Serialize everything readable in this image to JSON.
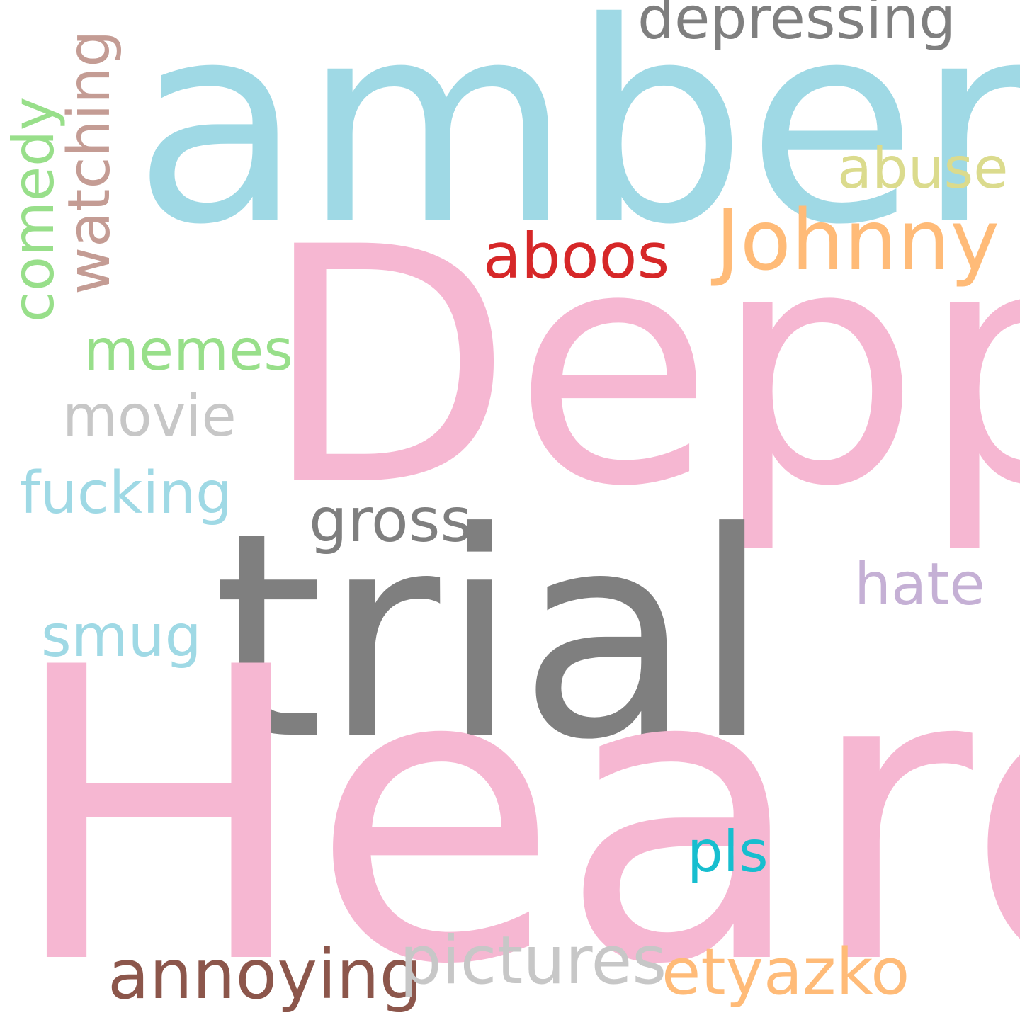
{
  "word_cloud": {
    "background": "#ffffff",
    "words": [
      {
        "text": "amber",
        "color": "#9fd9e5",
        "orientation": "horizontal"
      },
      {
        "text": "Depp",
        "color": "#f6b7d2",
        "orientation": "horizontal"
      },
      {
        "text": "trial",
        "color": "#7f7f7f",
        "orientation": "horizontal"
      },
      {
        "text": "Heard",
        "color": "#f6b7d2",
        "orientation": "horizontal"
      },
      {
        "text": "Johnny",
        "color": "#ffbb78",
        "orientation": "horizontal"
      },
      {
        "text": "depressing",
        "color": "#7f7f7f",
        "orientation": "horizontal"
      },
      {
        "text": "abuse",
        "color": "#dbdb8d",
        "orientation": "horizontal"
      },
      {
        "text": "aboos",
        "color": "#d62728",
        "orientation": "horizontal"
      },
      {
        "text": "memes",
        "color": "#98df8a",
        "orientation": "horizontal"
      },
      {
        "text": "movie",
        "color": "#c7c7c7",
        "orientation": "horizontal"
      },
      {
        "text": "fucking",
        "color": "#9fd9e5",
        "orientation": "horizontal"
      },
      {
        "text": "gross",
        "color": "#7f7f7f",
        "orientation": "horizontal"
      },
      {
        "text": "hate",
        "color": "#c5b0d5",
        "orientation": "horizontal"
      },
      {
        "text": "smug",
        "color": "#9fd9e5",
        "orientation": "horizontal"
      },
      {
        "text": "pls",
        "color": "#17becf",
        "orientation": "horizontal"
      },
      {
        "text": "annoying",
        "color": "#8c564b",
        "orientation": "horizontal"
      },
      {
        "text": "pictures",
        "color": "#c7c7c7",
        "orientation": "horizontal"
      },
      {
        "text": "etyazko",
        "color": "#ffbb78",
        "orientation": "horizontal"
      },
      {
        "text": "watching",
        "color": "#c49c94",
        "orientation": "vertical"
      },
      {
        "text": "comedy",
        "color": "#98df8a",
        "orientation": "vertical"
      }
    ]
  }
}
